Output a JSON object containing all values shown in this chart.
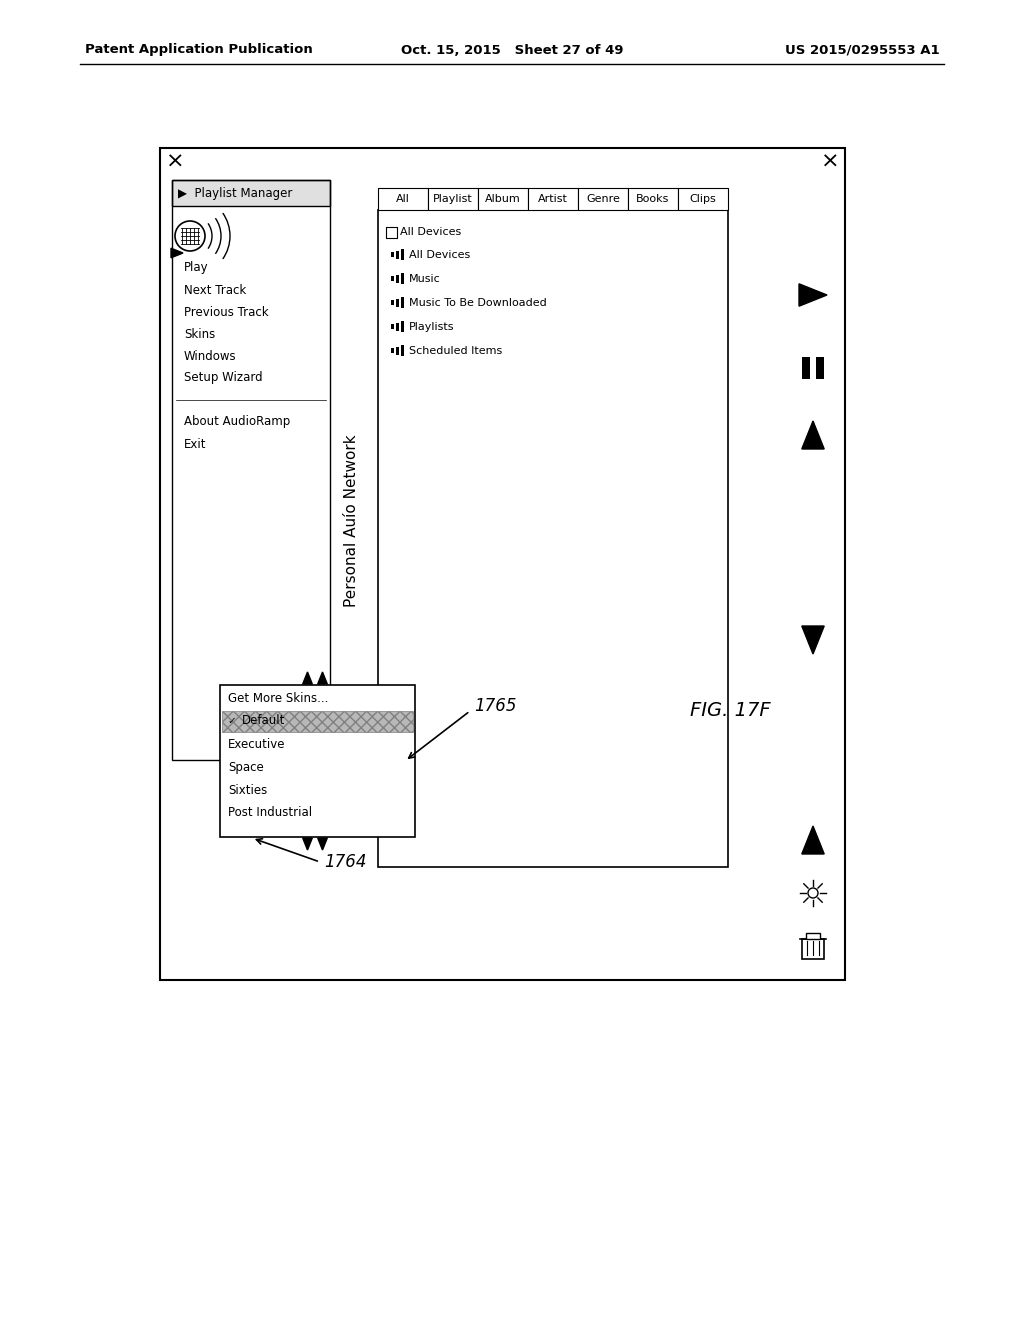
{
  "header_left": "Patent Application Publication",
  "header_center": "Oct. 15, 2015   Sheet 27 of 49",
  "header_right": "US 2015/0295553 A1",
  "fig_label": "FIG. 17F",
  "title_personal": "Personal Auío Network",
  "title_playlist": "Playlist Manager",
  "tabs_top": [
    "All",
    "Playlist",
    "Album",
    "Artist",
    "Genre",
    "Books",
    "Clips"
  ],
  "left_menu_items": [
    "Play",
    "Next Track",
    "Previous Track",
    "Skins",
    "Windows",
    "Setup Wizard",
    "",
    "About AudioRamp",
    "Exit"
  ],
  "submenu_items": [
    "Get More Skins...",
    "Default",
    "Executive",
    "Space",
    "Sixties",
    "Post Industrial"
  ],
  "tree_items": [
    "All Devices",
    "Music",
    "Music To Be Downloaded",
    "Playlists",
    "Scheduled Items"
  ],
  "annotation_1764": "1764",
  "annotation_1765": "1765",
  "bg_color": "#ffffff"
}
